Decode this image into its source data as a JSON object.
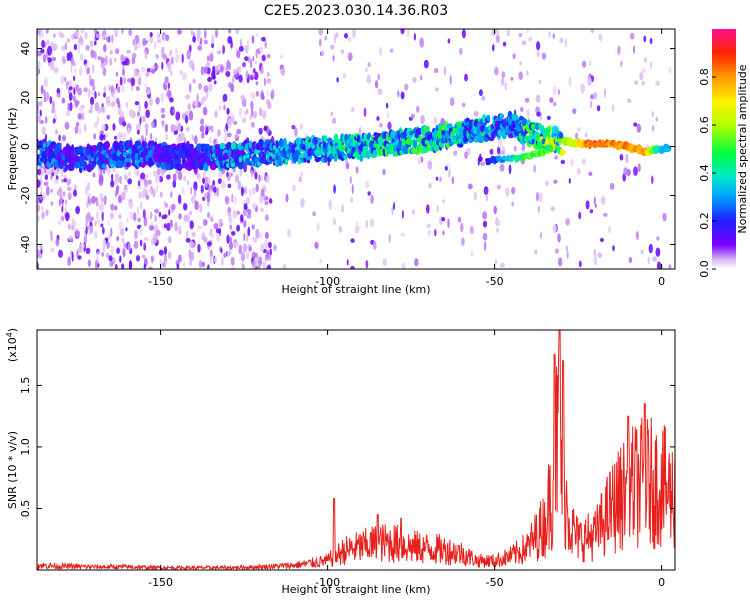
{
  "title": "C2E5.2023.030.14.36.R03",
  "colors": {
    "series": "#e8201c",
    "axis": "#000000"
  },
  "chart_data": [
    {
      "type": "heatmap",
      "xlabel": "Height of straight line (km)",
      "ylabel": "Frequency (Hz)",
      "xlim": [
        -187,
        4
      ],
      "ylim": [
        -50,
        48
      ],
      "xticks": [
        -150,
        -100,
        -50,
        0
      ],
      "yticks": [
        -40,
        -20,
        0,
        20,
        40
      ],
      "xtick_labels": [
        "-150",
        "-100",
        "-50",
        "0"
      ],
      "ytick_labels": [
        "-40",
        "-20",
        "0",
        "20",
        "40"
      ],
      "colorbar": {
        "label": "Normalized spectral amplitude",
        "range": [
          0,
          1
        ],
        "ticks": [
          0.0,
          0.2,
          0.4,
          0.6,
          0.8
        ],
        "tick_labels": [
          "0.0",
          "0.2",
          "0.4",
          "0.6",
          "0.8"
        ],
        "colormap": "rainbow"
      },
      "ridge": [
        {
          "x": -185,
          "f": -3,
          "a": 0.25
        },
        {
          "x": -175,
          "f": -5,
          "a": 0.2
        },
        {
          "x": -160,
          "f": -3,
          "a": 0.25
        },
        {
          "x": -140,
          "f": -4,
          "a": 0.15
        },
        {
          "x": -130,
          "f": -4,
          "a": 0.3
        },
        {
          "x": -110,
          "f": -2,
          "a": 0.3
        },
        {
          "x": -90,
          "f": 0,
          "a": 0.35
        },
        {
          "x": -70,
          "f": 3,
          "a": 0.4
        },
        {
          "x": -55,
          "f": 7,
          "a": 0.35
        },
        {
          "x": -45,
          "f": 9,
          "a": 0.25
        },
        {
          "x": -40,
          "f": 5,
          "a": 0.4
        },
        {
          "x": -30,
          "f": 2,
          "a": 0.55
        },
        {
          "x": -20,
          "f": 1,
          "a": 0.95
        },
        {
          "x": -15,
          "f": 1,
          "a": 0.9
        },
        {
          "x": -10,
          "f": 0,
          "a": 0.85
        },
        {
          "x": -5,
          "f": -2,
          "a": 0.85
        },
        {
          "x": 0,
          "f": -1,
          "a": 0.35
        },
        {
          "x": -52,
          "f": -6,
          "a": 0.2
        },
        {
          "x": -40,
          "f": -4,
          "a": 0.6
        },
        {
          "x": -33,
          "f": -1,
          "a": 0.6
        }
      ]
    },
    {
      "type": "line",
      "xlabel": "Height of straight line (km)",
      "ylabel": "SNR (10 * v/v)",
      "yscale_label": "(x10",
      "yscale_exp": "4",
      "yscale_close": ")",
      "xlim": [
        -187,
        4
      ],
      "ylim": [
        0,
        1.95
      ],
      "xticks": [
        -150,
        -100,
        -50,
        0
      ],
      "yticks": [
        0.5,
        1.0,
        1.5
      ],
      "xtick_labels": [
        "-150",
        "-100",
        "-50",
        "0"
      ],
      "ytick_labels": [
        "0.5",
        "1.0",
        "1.5"
      ],
      "envelope": [
        [
          -187,
          0.06
        ],
        [
          -180,
          0.05
        ],
        [
          -170,
          0.04
        ],
        [
          -160,
          0.04
        ],
        [
          -150,
          0.03
        ],
        [
          -140,
          0.03
        ],
        [
          -130,
          0.03
        ],
        [
          -120,
          0.04
        ],
        [
          -110,
          0.06
        ],
        [
          -100,
          0.12
        ],
        [
          -95,
          0.25
        ],
        [
          -90,
          0.3
        ],
        [
          -85,
          0.35
        ],
        [
          -80,
          0.35
        ],
        [
          -75,
          0.3
        ],
        [
          -70,
          0.28
        ],
        [
          -65,
          0.26
        ],
        [
          -60,
          0.22
        ],
        [
          -55,
          0.12
        ],
        [
          -50,
          0.12
        ],
        [
          -45,
          0.18
        ],
        [
          -40,
          0.3
        ],
        [
          -35,
          0.6
        ],
        [
          -33,
          1.0
        ],
        [
          -31,
          1.8
        ],
        [
          -29,
          1.0
        ],
        [
          -27,
          0.55
        ],
        [
          -25,
          0.4
        ],
        [
          -20,
          0.45
        ],
        [
          -15,
          0.8
        ],
        [
          -10,
          1.05
        ],
        [
          -5,
          1.15
        ],
        [
          0,
          1.1
        ],
        [
          4,
          0.95
        ]
      ],
      "peaks": [
        {
          "x": -98,
          "y": 0.58
        },
        {
          "x": -85,
          "y": 0.45
        },
        {
          "x": -78,
          "y": 0.42
        },
        {
          "x": -32,
          "y": 1.75
        },
        {
          "x": -30.5,
          "y": 1.95
        },
        {
          "x": -29.5,
          "y": 1.7
        },
        {
          "x": -10,
          "y": 1.25
        },
        {
          "x": -5,
          "y": 1.35
        }
      ]
    }
  ]
}
